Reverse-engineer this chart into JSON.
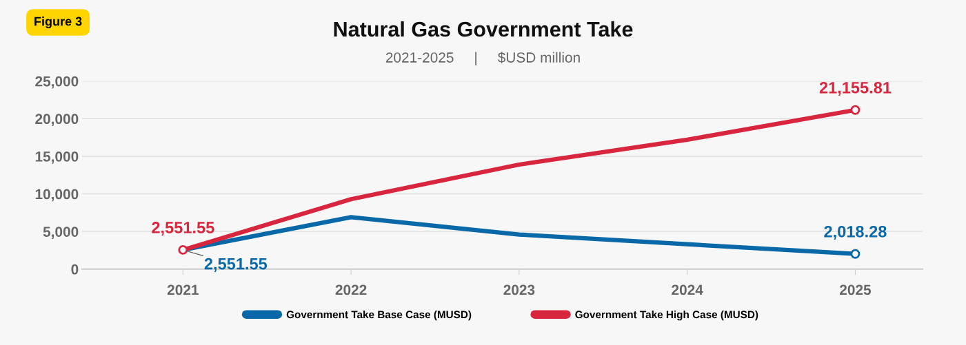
{
  "chart_data": {
    "type": "line",
    "title": "Natural Gas Government Take",
    "subtitle": "2021-2025     |     $USD million",
    "annotations": [
      "Figure 3"
    ],
    "categories": [
      "2021",
      "2022",
      "2023",
      "2024",
      "2025"
    ],
    "series": [
      {
        "name": "Government Take Base Case (MUSD)",
        "color": "#0868a8",
        "values": [
          2551.55,
          6900,
          4600,
          3300,
          2018.28
        ],
        "value_labels": [
          "2,551.55",
          null,
          null,
          null,
          "2,018.28"
        ]
      },
      {
        "name": "Government Take High Case (MUSD)",
        "color": "#d7263d",
        "values": [
          2551.55,
          9300,
          13900,
          17200,
          21155.81
        ],
        "value_labels": [
          "2,551.55",
          null,
          null,
          null,
          "21,155.81"
        ]
      }
    ],
    "ylim": [
      0,
      25000
    ],
    "yticks": [
      {
        "value": 0,
        "label": "0"
      },
      {
        "value": 5000,
        "label": "5,000"
      },
      {
        "value": 10000,
        "label": "10,000"
      },
      {
        "value": 15000,
        "label": "15,000"
      },
      {
        "value": 20000,
        "label": "20,000"
      },
      {
        "value": 25000,
        "label": "25,000"
      }
    ],
    "grid": "y",
    "legend": "bottom"
  }
}
